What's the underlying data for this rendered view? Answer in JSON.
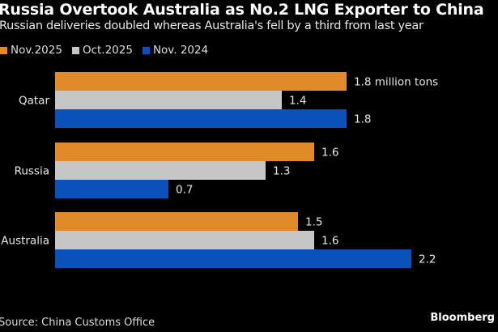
{
  "chart_data": {
    "type": "bar",
    "orientation": "horizontal",
    "title": "Russia Overtook Australia as No.2 LNG Exporter to China",
    "subtitle": "Russian deliveries doubled whereas Australia's fell by a third from last year",
    "categories": [
      "Qatar",
      "Russia",
      "Australia"
    ],
    "unit_label": "million tons",
    "series": [
      {
        "name": "Nov.2025",
        "color": "#e08a2a",
        "values": [
          1.8,
          1.6,
          1.5
        ]
      },
      {
        "name": "Oct.2025",
        "color": "#c6c6c6",
        "values": [
          1.4,
          1.3,
          1.6
        ]
      },
      {
        "name": "Nov. 2024",
        "color": "#0a52ba",
        "values": [
          1.8,
          0.7,
          2.2
        ]
      }
    ],
    "data_labels": [
      [
        "1.8 million tons",
        "1.4",
        "1.8"
      ],
      [
        "1.6",
        "1.3",
        "0.7"
      ],
      [
        "1.5",
        "1.6",
        "2.2"
      ]
    ],
    "xlim": [
      0,
      2.7
    ],
    "grid": false,
    "legend_placement": "top-left",
    "source": "Source: China Customs Office",
    "logo": "Bloomberg"
  }
}
